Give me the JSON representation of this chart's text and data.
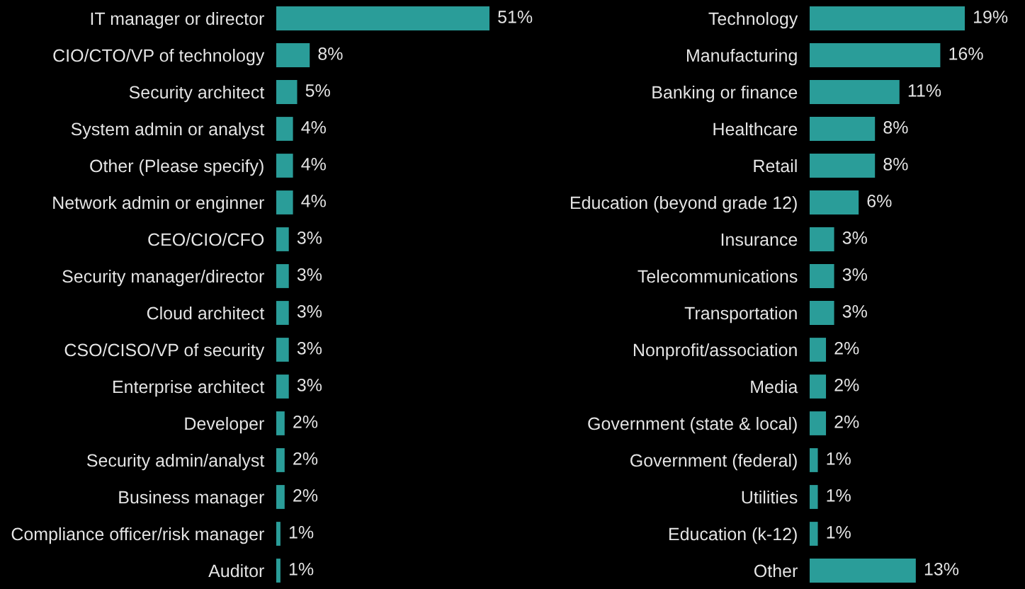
{
  "chart_data": [
    {
      "type": "bar",
      "orientation": "horizontal",
      "categories": [
        "IT manager or director",
        "CIO/CTO/VP of technology",
        "Security architect",
        "System admin or analyst",
        "Other (Please specify)",
        "Network admin or enginner",
        "CEO/CIO/CFO",
        "Security manager/director",
        "Cloud architect",
        "CSO/CISO/VP of security",
        "Enterprise architect",
        "Developer",
        "Security admin/analyst",
        "Business manager",
        "Compliance officer/risk manager",
        "Auditor"
      ],
      "values": [
        51,
        8,
        5,
        4,
        4,
        4,
        3,
        3,
        3,
        3,
        3,
        2,
        2,
        2,
        1,
        1
      ],
      "value_labels": [
        "51%",
        "8%",
        "5%",
        "4%",
        "4%",
        "4%",
        "3%",
        "3%",
        "3%",
        "3%",
        "3%",
        "2%",
        "2%",
        "2%",
        "1%",
        "1%"
      ],
      "color": "#2a9d99",
      "tick_labels": "y",
      "grid": false
    },
    {
      "type": "bar",
      "orientation": "horizontal",
      "categories": [
        "Technology",
        "Manufacturing",
        "Banking or finance",
        "Healthcare",
        "Retail",
        "Education (beyond grade 12)",
        "Insurance",
        "Telecommunications",
        "Transportation",
        "Nonprofit/association",
        "Media",
        "Government (state & local)",
        "Government (federal)",
        "Utilities",
        "Education (k-12)",
        "Other"
      ],
      "values": [
        19,
        16,
        11,
        8,
        8,
        6,
        3,
        3,
        3,
        2,
        2,
        2,
        1,
        1,
        1,
        13
      ],
      "value_labels": [
        "19%",
        "16%",
        "11%",
        "8%",
        "8%",
        "6%",
        "3%",
        "3%",
        "3%",
        "2%",
        "2%",
        "2%",
        "1%",
        "1%",
        "1%",
        "13%"
      ],
      "color": "#2a9d99",
      "tick_labels": "y",
      "grid": false
    }
  ]
}
